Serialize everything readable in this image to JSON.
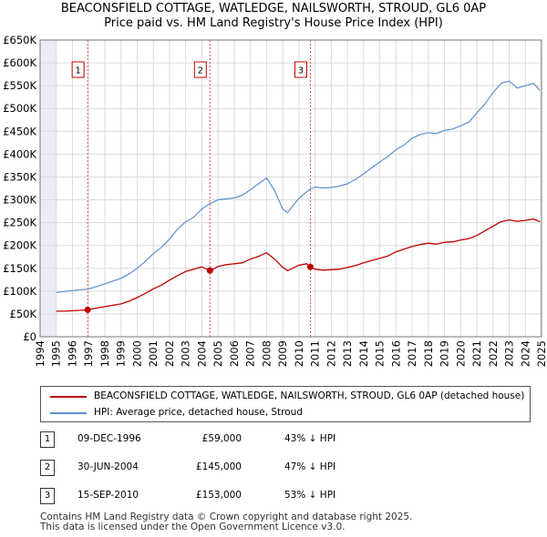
{
  "header": {
    "title": "BEACONSFIELD COTTAGE, WATLEDGE, NAILSWORTH, STROUD, GL6 0AP",
    "subtitle": "Price paid vs. HM Land Registry's House Price Index (HPI)"
  },
  "legend": {
    "property_label": "BEACONSFIELD COTTAGE, WATLEDGE, NAILSWORTH, STROUD, GL6 0AP (detached house)",
    "hpi_label": "HPI: Average price, detached house, Stroud"
  },
  "sales": [
    {
      "num": "1",
      "date": "09-DEC-1996",
      "price": "£59,000",
      "hpi": "43% ↓ HPI"
    },
    {
      "num": "2",
      "date": "30-JUN-2004",
      "price": "£145,000",
      "hpi": "47% ↓ HPI"
    },
    {
      "num": "3",
      "date": "15-SEP-2010",
      "price": "£153,000",
      "hpi": "53% ↓ HPI"
    }
  ],
  "footer": {
    "line1": "Contains HM Land Registry data © Crown copyright and database right 2025.",
    "line2": "This data is licensed under the Open Government Licence v3.0."
  },
  "colors": {
    "property": "#c00000",
    "hpi": "#5b8fd0",
    "grid": "#dcdcdc",
    "plot_bg": "#ffffff",
    "shade": "#e8edf8",
    "marker_line": "#e05050"
  },
  "chart_data": {
    "type": "line",
    "xlim": [
      1994,
      2025
    ],
    "ylim": [
      0,
      650000
    ],
    "yticks": [
      0,
      50000,
      100000,
      150000,
      200000,
      250000,
      300000,
      350000,
      400000,
      450000,
      500000,
      550000,
      600000,
      650000
    ],
    "ytick_labels": [
      "£0",
      "£50K",
      "£100K",
      "£150K",
      "£200K",
      "£250K",
      "£300K",
      "£350K",
      "£400K",
      "£450K",
      "£500K",
      "£550K",
      "£600K",
      "£650K"
    ],
    "xticks": [
      1994,
      1995,
      1996,
      1997,
      1998,
      1999,
      2000,
      2001,
      2002,
      2003,
      2004,
      2005,
      2006,
      2007,
      2008,
      2009,
      2010,
      2011,
      2012,
      2013,
      2014,
      2015,
      2016,
      2017,
      2018,
      2019,
      2020,
      2021,
      2022,
      2023,
      2024,
      2025
    ],
    "xtick_labels": [
      "1994",
      "1995",
      "1996",
      "1997",
      "1998",
      "1999",
      "2000",
      "2001",
      "2002",
      "2003",
      "2004",
      "2005",
      "2006",
      "2007",
      "2008",
      "2009",
      "2010",
      "2011",
      "2012",
      "2013",
      "2014",
      "2015",
      "2016",
      "2017",
      "2018",
      "2019",
      "2020",
      "2021",
      "2022",
      "2023",
      "2024",
      "2025"
    ],
    "shaded_ranges": [
      [
        1994,
        1995.0
      ],
      [
        2024.9,
        2025
      ]
    ],
    "series": [
      {
        "name": "BEACONSFIELD COTTAGE, WATLEDGE, NAILSWORTH, STROUD, GL6 0AP (detached house)",
        "color": "#c00000",
        "x": [
          1995.0,
          1995.5,
          1996.0,
          1996.5,
          1996.94,
          1997.5,
          1998.0,
          1998.5,
          1999.0,
          1999.5,
          2000.0,
          2000.5,
          2001.0,
          2001.5,
          2002.0,
          2002.5,
          2003.0,
          2003.5,
          2004.0,
          2004.5,
          2005.0,
          2005.5,
          2006.0,
          2006.5,
          2007.0,
          2007.5,
          2008.0,
          2008.5,
          2009.0,
          2009.3,
          2009.6,
          2010.0,
          2010.5,
          2010.71,
          2011.0,
          2011.5,
          2012.0,
          2012.5,
          2013.0,
          2013.5,
          2014.0,
          2014.5,
          2015.0,
          2015.5,
          2016.0,
          2016.5,
          2017.0,
          2017.5,
          2018.0,
          2018.5,
          2019.0,
          2019.5,
          2020.0,
          2020.5,
          2021.0,
          2021.5,
          2022.0,
          2022.5,
          2023.0,
          2023.5,
          2024.0,
          2024.5,
          2024.9
        ],
        "values": [
          56000,
          56000,
          57000,
          58000,
          59000,
          63000,
          66000,
          69000,
          72000,
          78000,
          86000,
          95000,
          105000,
          113000,
          124000,
          134000,
          143000,
          148000,
          153000,
          145000,
          154000,
          158000,
          160000,
          162000,
          170000,
          176000,
          184000,
          170000,
          152000,
          145000,
          150000,
          157000,
          160000,
          153000,
          148000,
          146000,
          147000,
          148000,
          152000,
          156000,
          162000,
          167000,
          172000,
          177000,
          186000,
          192000,
          198000,
          202000,
          205000,
          203000,
          207000,
          208000,
          212000,
          215000,
          222000,
          232000,
          242000,
          252000,
          256000,
          253000,
          255000,
          258000,
          252000
        ]
      },
      {
        "name": "HPI: Average price, detached house, Stroud",
        "color": "#5b8fd0",
        "x": [
          1995.0,
          1995.5,
          1996.0,
          1996.5,
          1996.94,
          1997.5,
          1998.0,
          1998.5,
          1999.0,
          1999.5,
          2000.0,
          2000.5,
          2001.0,
          2001.5,
          2002.0,
          2002.5,
          2003.0,
          2003.5,
          2004.0,
          2004.5,
          2005.0,
          2005.5,
          2006.0,
          2006.5,
          2007.0,
          2007.5,
          2008.0,
          2008.5,
          2009.0,
          2009.3,
          2009.6,
          2010.0,
          2010.5,
          2010.71,
          2011.0,
          2011.5,
          2012.0,
          2012.5,
          2013.0,
          2013.5,
          2014.0,
          2014.5,
          2015.0,
          2015.5,
          2016.0,
          2016.5,
          2017.0,
          2017.5,
          2018.0,
          2018.5,
          2019.0,
          2019.5,
          2020.0,
          2020.5,
          2021.0,
          2021.5,
          2022.0,
          2022.5,
          2023.0,
          2023.5,
          2024.0,
          2024.5,
          2024.9
        ],
        "values": [
          97000,
          99000,
          101000,
          103000,
          104000,
          110000,
          116000,
          122000,
          128000,
          138000,
          150000,
          165000,
          182000,
          196000,
          214000,
          236000,
          252000,
          262000,
          280000,
          292000,
          300000,
          302000,
          304000,
          310000,
          322000,
          335000,
          348000,
          320000,
          280000,
          272000,
          286000,
          303000,
          318000,
          324000,
          328000,
          326000,
          327000,
          330000,
          335000,
          345000,
          357000,
          370000,
          383000,
          395000,
          410000,
          420000,
          435000,
          443000,
          447000,
          445000,
          452000,
          455000,
          462000,
          470000,
          490000,
          510000,
          535000,
          555000,
          560000,
          545000,
          550000,
          555000,
          540000
        ]
      }
    ],
    "sale_points": [
      {
        "label": "1",
        "x": 1996.94,
        "value": 59000
      },
      {
        "label": "2",
        "x": 2004.5,
        "value": 145000
      },
      {
        "label": "3",
        "x": 2010.71,
        "value": 153000
      }
    ]
  }
}
